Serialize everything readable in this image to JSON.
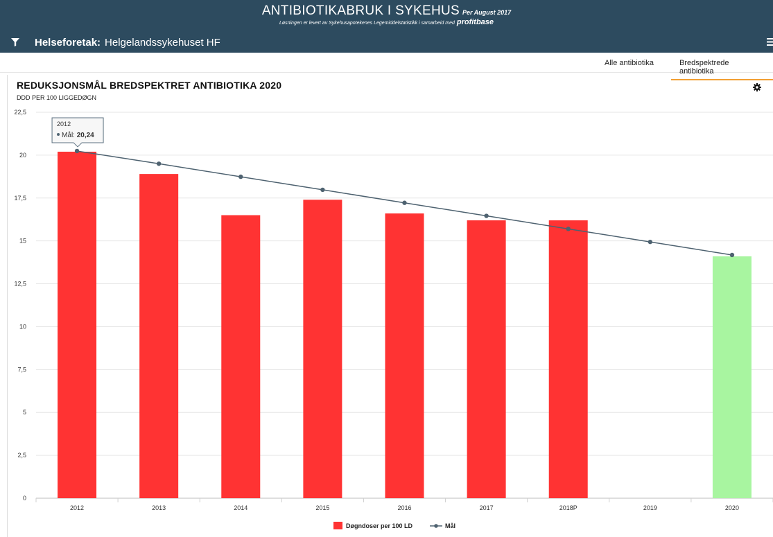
{
  "header": {
    "title": "ANTIBIOTIKABRUK I SYKEHUS",
    "per": "Per August 2017",
    "subtitle": "Løsningen er levert av Sykehusapotekenes Legemiddelstatistikk i samarbeid med",
    "brand": "profitbase",
    "filter_label": "Helseforetak:",
    "filter_value": "Helgelandssykehuset HF",
    "bg_color": "#2d4b5f"
  },
  "tabs": [
    {
      "label": "Alle antibiotika",
      "active": false
    },
    {
      "label": "Bredspektrede antibiotika",
      "active": true
    }
  ],
  "icons": [
    "filter-icon",
    "list-icon",
    "gear-icon"
  ],
  "tooltip": {
    "year": "2012",
    "series": "Mål",
    "value": "20,24"
  },
  "chart_data": {
    "type": "bar",
    "title": "REDUKSJONSMÅL BREDSPEKTRET ANTIBIOTIKA 2020",
    "subtitle": "DDD PER 100 LIGGEDØGN",
    "categories": [
      "2012",
      "2013",
      "2014",
      "2015",
      "2016",
      "2017",
      "2018P",
      "2019",
      "2020"
    ],
    "ylim": [
      0,
      22.5
    ],
    "yticks": [
      "0",
      "2,5",
      "5",
      "7,5",
      "10",
      "12,5",
      "15",
      "17,5",
      "20",
      "22,5"
    ],
    "grid": true,
    "legend_position": "bottom-center",
    "series": [
      {
        "name": "Døgndoser per 100 LD",
        "type": "bar",
        "color": "#ff3333",
        "values": [
          20.2,
          18.9,
          16.5,
          17.4,
          16.6,
          16.2,
          16.2,
          null,
          14.1
        ],
        "point_colors": [
          null,
          null,
          null,
          null,
          null,
          null,
          null,
          null,
          "#a8f5a0"
        ]
      },
      {
        "name": "Mål",
        "type": "line",
        "color": "#4e6270",
        "values": [
          20.24,
          19.5,
          18.74,
          17.98,
          17.22,
          16.46,
          15.7,
          14.94,
          14.18
        ]
      }
    ]
  }
}
